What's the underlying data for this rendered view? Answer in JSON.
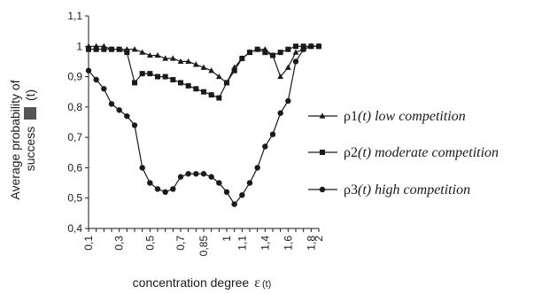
{
  "chart_data": {
    "type": "line",
    "xlabel": "concentration degree",
    "xlabel_symbol": "ε",
    "xlabel_suffix": "(t)",
    "ylabel_line1": "Average probability of",
    "ylabel_line2": "success",
    "ylabel_suffix": "(t)",
    "ylim": [
      0.4,
      1.1
    ],
    "yticks": [
      "0,4",
      "0,5",
      "0,6",
      "0,7",
      "0,8",
      "0,9",
      "1",
      "1,1"
    ],
    "x_categories": [
      "0,1",
      "0,15",
      "0,2",
      "0,25",
      "0,3",
      "0,35",
      "0,4",
      "0,45",
      "0,5",
      "0,55",
      "0,6",
      "0,65",
      "0,7",
      "0,75",
      "0,8",
      "0,85",
      "0,9",
      "0,95",
      "1",
      "1,05",
      "1,1",
      "1,2",
      "1,3",
      "1,4",
      "1,45",
      "1,5",
      "1,55",
      "1,6",
      "1,7",
      "1,8",
      "2"
    ],
    "x_tick_labels": [
      "0,1",
      "0,3",
      "0,5",
      "0,7",
      "0,85",
      "1",
      "1,1",
      "1,4",
      "1,6",
      "1,8",
      "2"
    ],
    "x_tick_label_indices": [
      0,
      4,
      8,
      12,
      15,
      18,
      20,
      23,
      26,
      29,
      30
    ],
    "legend_position": "right",
    "series": [
      {
        "name": "ρ1(t) low competition",
        "legend_symbol": "ρ",
        "legend_index": "1",
        "legend_arg": "(t)",
        "legend_desc": " low competition",
        "marker": "triangle",
        "values": [
          1.0,
          1.0,
          1.0,
          0.99,
          0.99,
          0.99,
          0.99,
          0.98,
          0.97,
          0.97,
          0.96,
          0.96,
          0.95,
          0.95,
          0.94,
          0.93,
          0.92,
          0.9,
          0.88,
          0.93,
          0.96,
          0.98,
          0.99,
          0.99,
          0.97,
          0.9,
          0.93,
          0.98,
          0.99,
          1.0,
          1.0
        ]
      },
      {
        "name": "ρ2(t) moderate competition",
        "legend_symbol": "ρ",
        "legend_index": "2",
        "legend_arg": "(t)",
        "legend_desc": " moderate competition",
        "marker": "square",
        "values": [
          0.99,
          0.99,
          0.99,
          0.99,
          0.99,
          0.98,
          0.88,
          0.91,
          0.91,
          0.9,
          0.9,
          0.89,
          0.88,
          0.87,
          0.86,
          0.85,
          0.84,
          0.83,
          0.88,
          0.92,
          0.96,
          0.98,
          0.99,
          0.98,
          0.97,
          0.98,
          0.99,
          1.0,
          1.0,
          1.0,
          1.0
        ]
      },
      {
        "name": "ρ3(t) high competition",
        "legend_symbol": "ρ",
        "legend_index": "3",
        "legend_arg": "(t)",
        "legend_desc": " high competition",
        "marker": "circle",
        "values": [
          0.92,
          0.89,
          0.86,
          0.81,
          0.79,
          0.77,
          0.74,
          0.6,
          0.55,
          0.53,
          0.52,
          0.53,
          0.57,
          0.58,
          0.58,
          0.58,
          0.57,
          0.55,
          0.52,
          0.48,
          0.51,
          0.55,
          0.6,
          0.67,
          0.71,
          0.78,
          0.82,
          0.95,
          0.99,
          1.0,
          1.0
        ]
      }
    ]
  }
}
